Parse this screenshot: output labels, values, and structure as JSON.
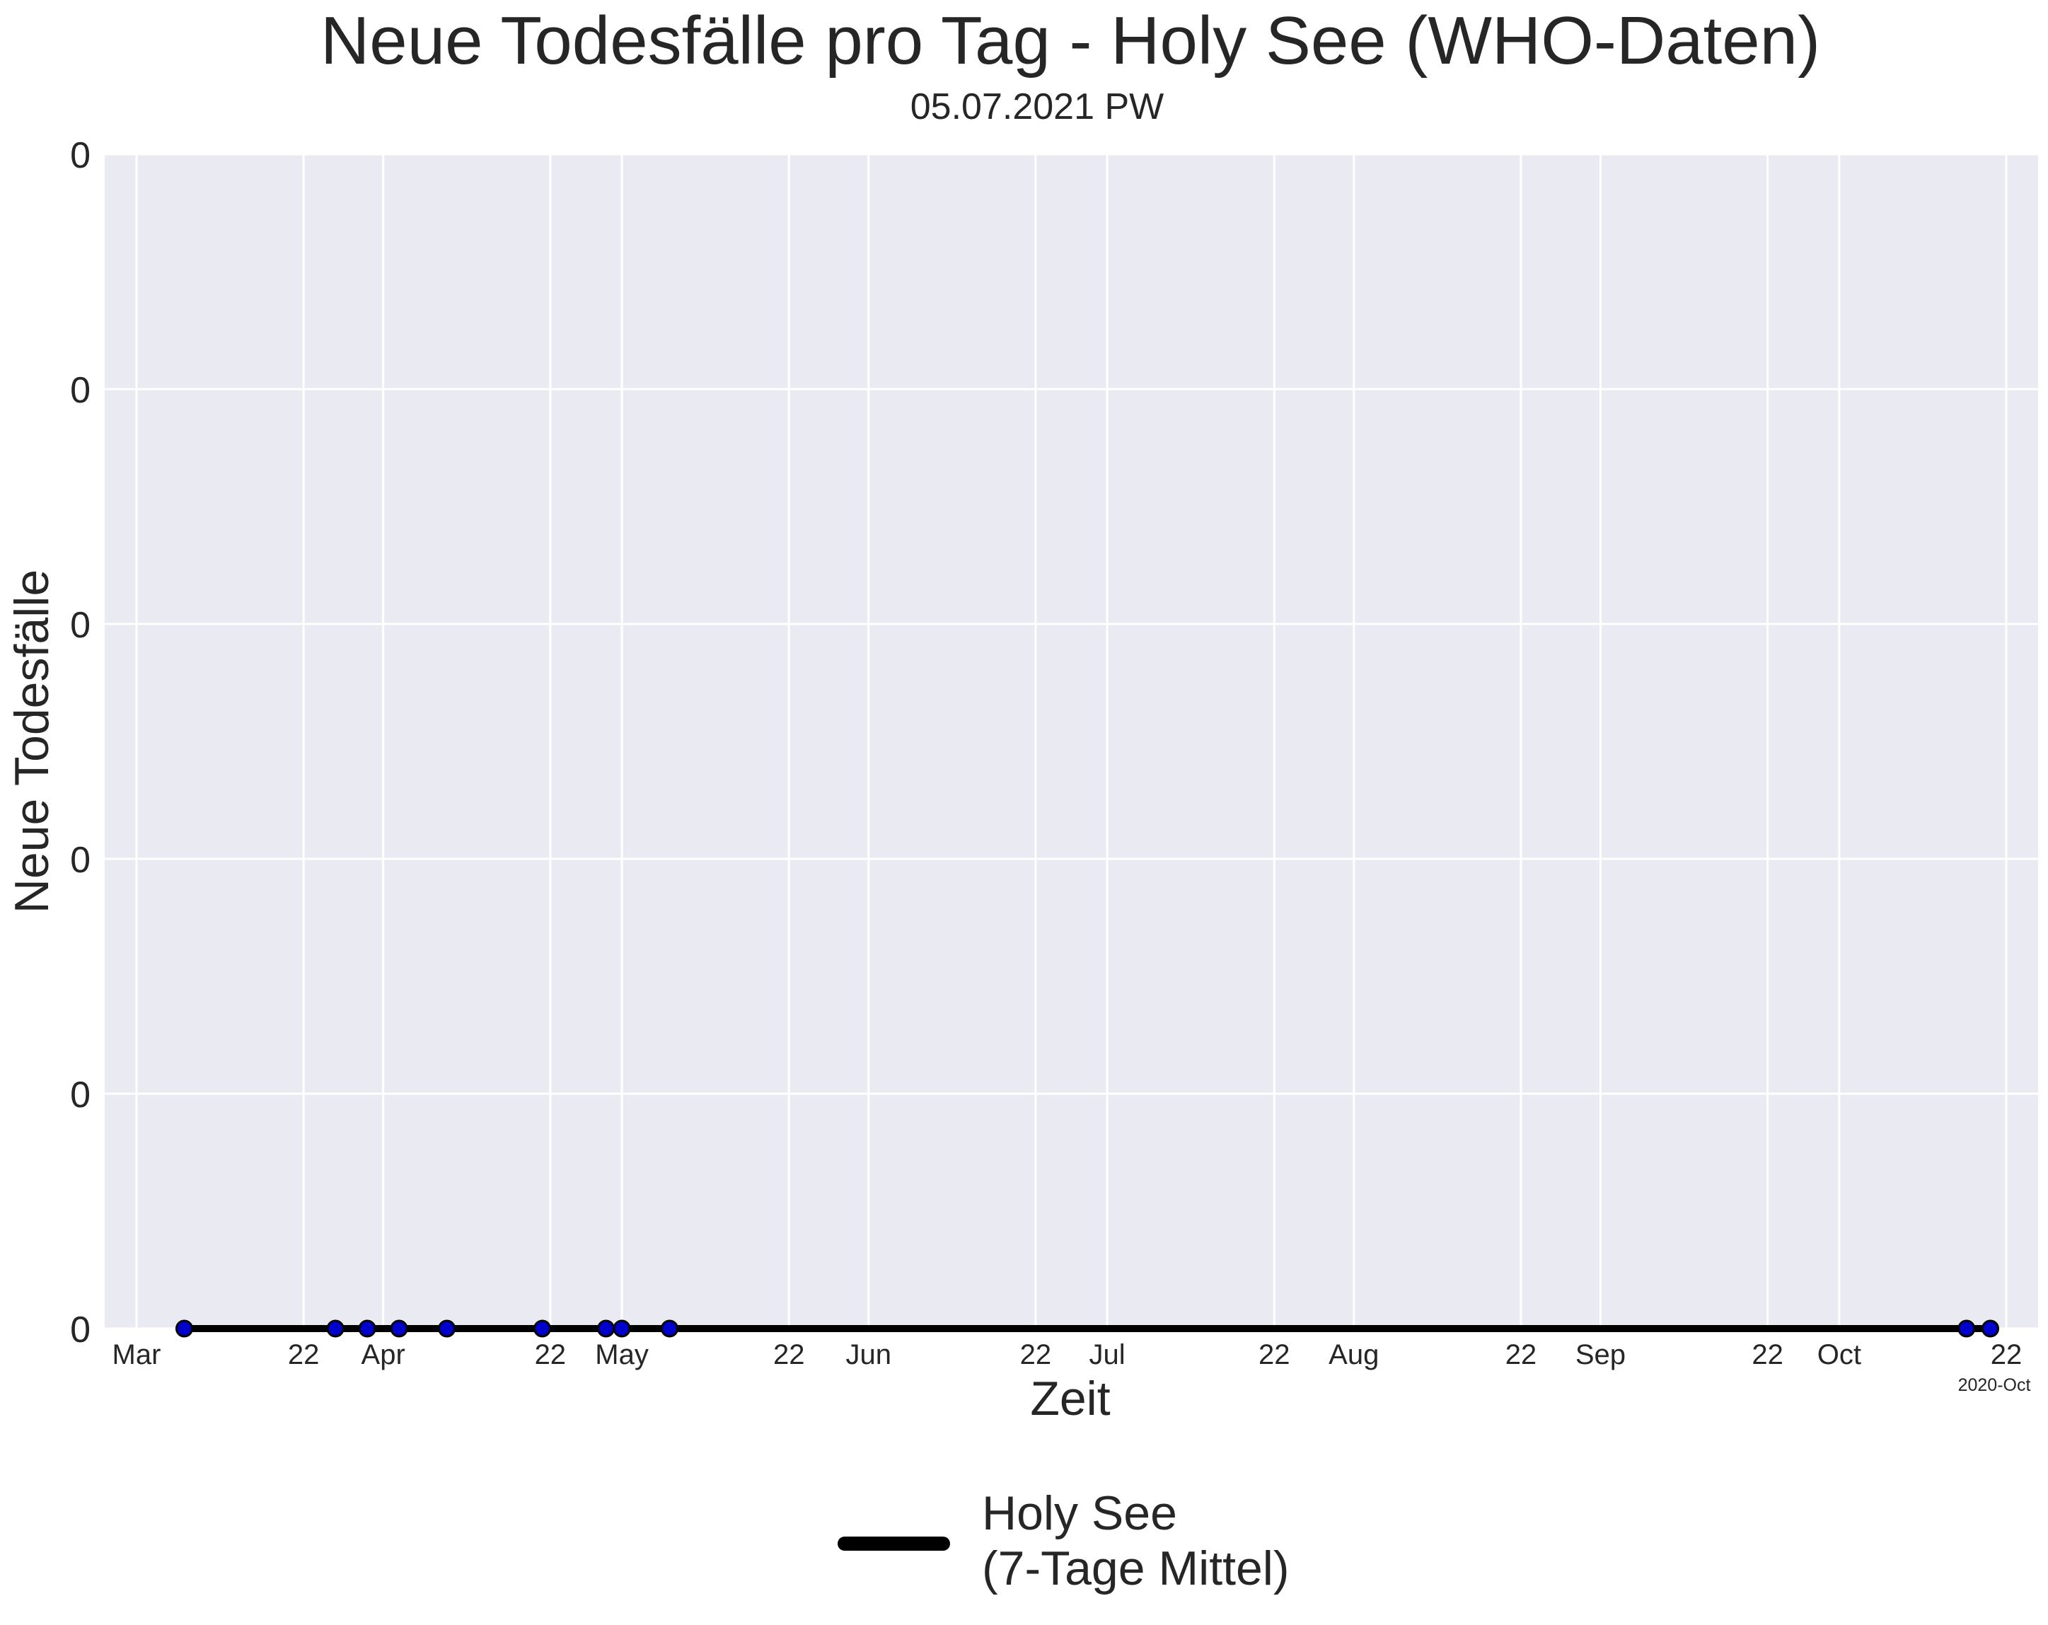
{
  "chart_data": {
    "type": "line",
    "title": "Neue Todesfälle pro Tag - Holy See (WHO-Daten)",
    "subtitle": "05.07.2021 PW",
    "xlabel": "Zeit",
    "ylabel": "Neue Todesfälle",
    "x_offset_label": "2020-Oct",
    "xlim": [
      "2020-02-26",
      "2020-10-26"
    ],
    "ylim": [
      0,
      0.05
    ],
    "x_ticks": [
      {
        "date": "2020-03-01",
        "label": "Mar"
      },
      {
        "date": "2020-03-22",
        "label": "22"
      },
      {
        "date": "2020-04-01",
        "label": "Apr"
      },
      {
        "date": "2020-04-22",
        "label": "22"
      },
      {
        "date": "2020-05-01",
        "label": "May"
      },
      {
        "date": "2020-05-22",
        "label": "22"
      },
      {
        "date": "2020-06-01",
        "label": "Jun"
      },
      {
        "date": "2020-06-22",
        "label": "22"
      },
      {
        "date": "2020-07-01",
        "label": "Jul"
      },
      {
        "date": "2020-07-22",
        "label": "22"
      },
      {
        "date": "2020-08-01",
        "label": "Aug"
      },
      {
        "date": "2020-08-22",
        "label": "22"
      },
      {
        "date": "2020-09-01",
        "label": "Sep"
      },
      {
        "date": "2020-09-22",
        "label": "22"
      },
      {
        "date": "2020-10-01",
        "label": "Oct"
      },
      {
        "date": "2020-10-22",
        "label": "22"
      }
    ],
    "y_ticks": [
      {
        "value": 0,
        "label": "0"
      },
      {
        "value": 0.01,
        "label": "0"
      },
      {
        "value": 0.02,
        "label": "0"
      },
      {
        "value": 0.03,
        "label": "0"
      },
      {
        "value": 0.04,
        "label": "0"
      },
      {
        "value": 0.05,
        "label": "0"
      }
    ],
    "grid": true,
    "series": [
      {
        "name": "Holy See\n(7-Tage Mittel)",
        "kind": "line",
        "color": "#000000",
        "x": [
          "2020-03-07",
          "2020-10-20"
        ],
        "y": [
          0,
          0
        ]
      },
      {
        "kind": "points",
        "color": "#0000cc",
        "x": [
          "2020-03-07",
          "2020-03-26",
          "2020-03-30",
          "2020-04-03",
          "2020-04-09",
          "2020-04-21",
          "2020-04-29",
          "2020-05-01",
          "2020-05-07",
          "2020-10-17",
          "2020-10-20"
        ],
        "y": [
          0,
          0,
          0,
          0,
          0,
          0,
          0,
          0,
          0,
          0,
          0
        ]
      }
    ],
    "legend": {
      "placement": "bottom-center",
      "entries": [
        "Holy See",
        "(7-Tage Mittel)"
      ]
    }
  }
}
